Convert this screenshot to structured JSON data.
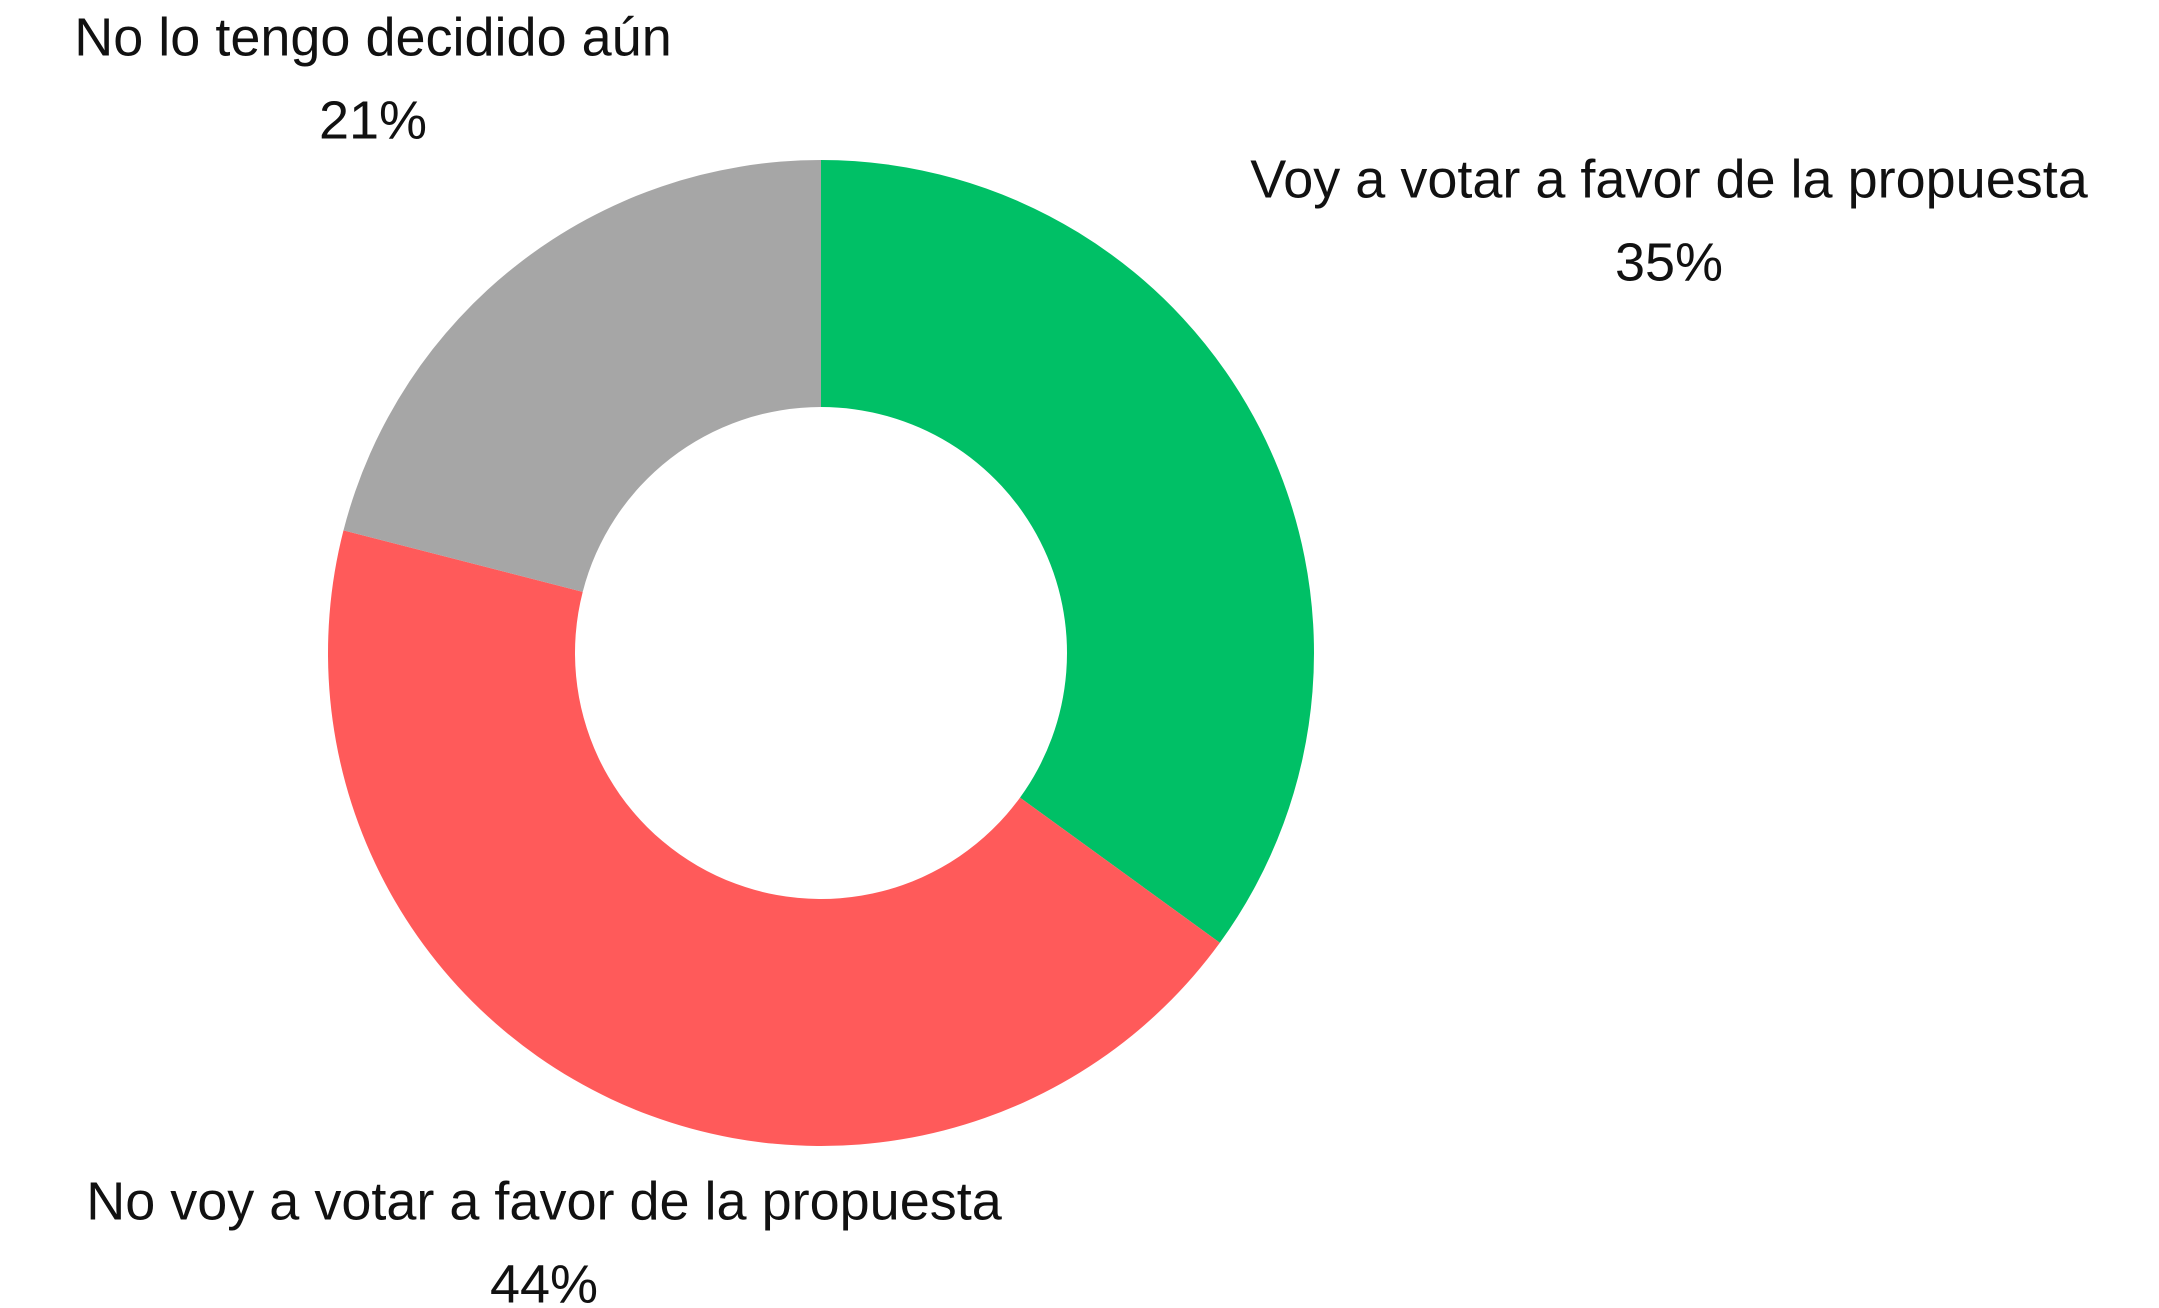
{
  "chart_data": {
    "type": "donut",
    "categories": [
      "Voy a votar a favor de la propuesta",
      "No voy a votar a favor de la propuesta",
      "No lo tengo decidido aún"
    ],
    "values": [
      35,
      44,
      21
    ],
    "value_labels": [
      "35%",
      "44%",
      "21%"
    ],
    "colors": [
      "#00c066",
      "#ff5a5a",
      "#a6a6a6"
    ]
  }
}
